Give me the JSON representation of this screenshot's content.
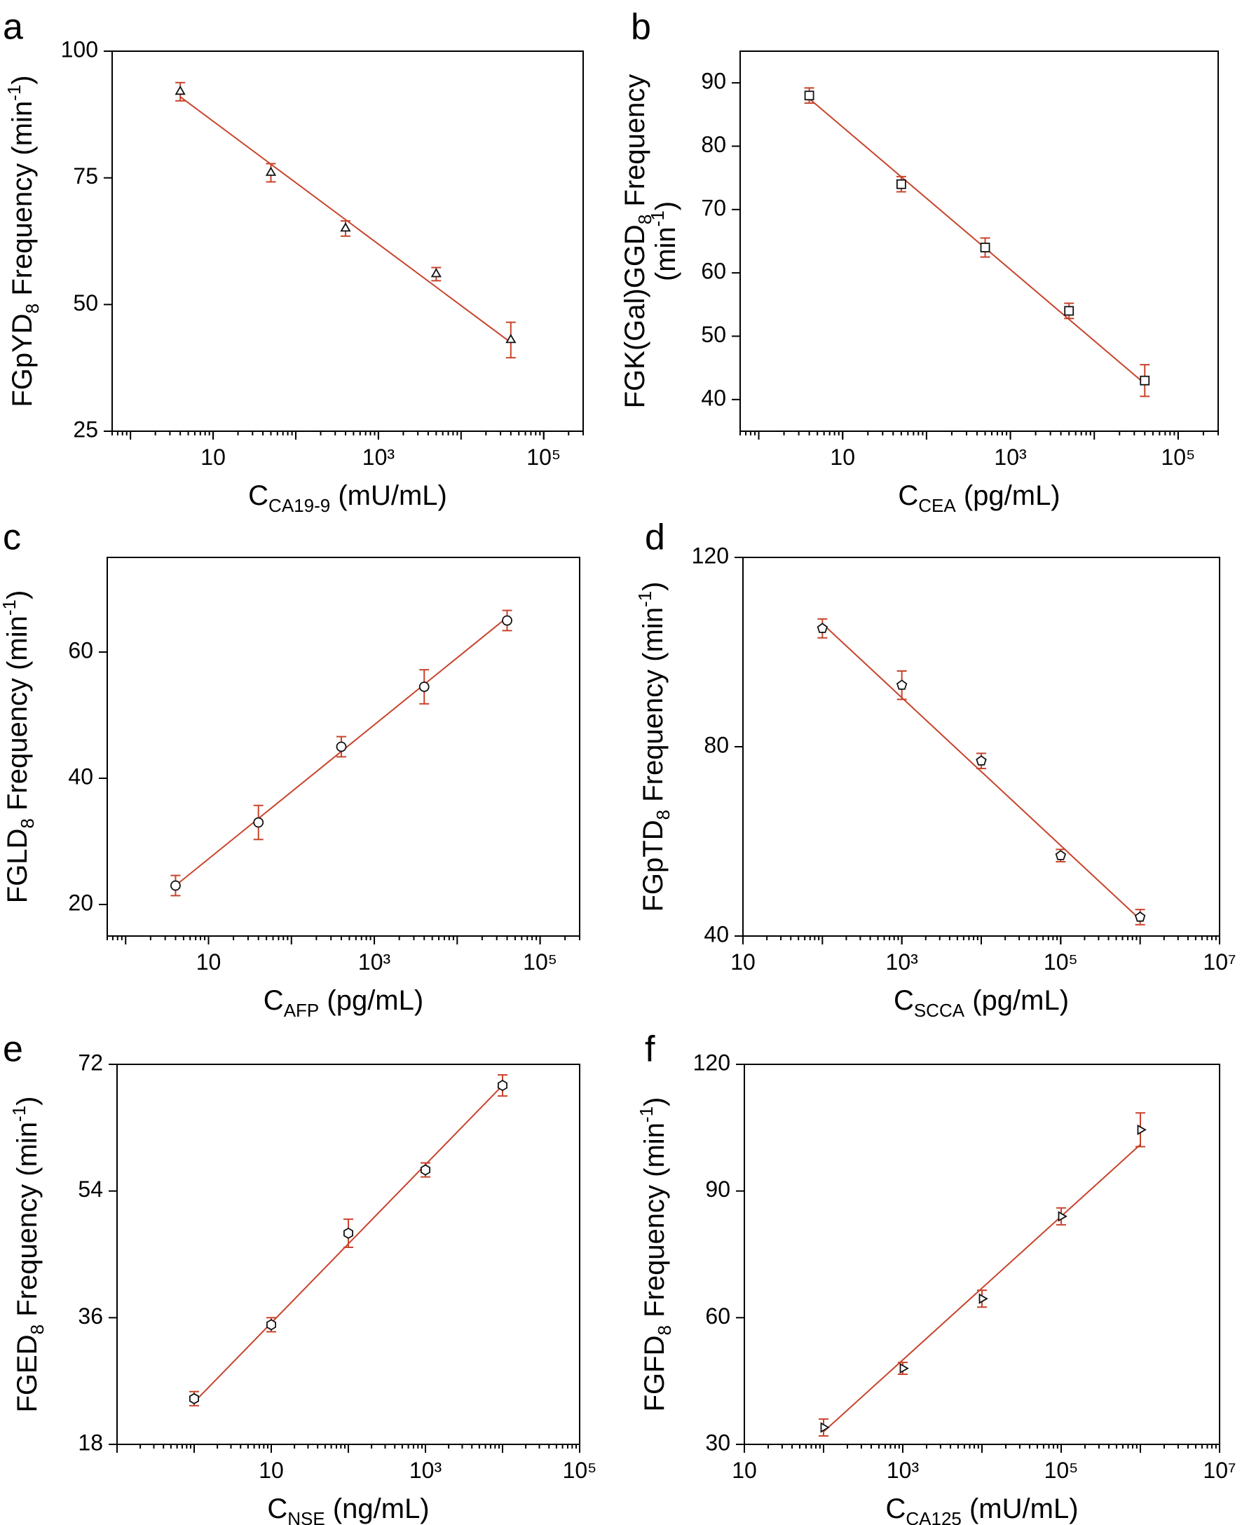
{
  "figure": {
    "panels": [
      {
        "label": "a"
      },
      {
        "label": "b"
      },
      {
        "label": "c"
      },
      {
        "label": "d"
      },
      {
        "label": "e"
      },
      {
        "label": "f"
      }
    ]
  },
  "colors": {
    "fit_line": "#c8432b",
    "error_bar": "#c8432b",
    "marker": "#111111",
    "axis": "#000000"
  },
  "chart_data": [
    {
      "type": "scatter",
      "panel": "a",
      "marker": "triangle-up",
      "xscale": "log",
      "xlim": [
        0.6,
        300000
      ],
      "ylim": [
        25,
        100
      ],
      "xticks": [
        {
          "value": 10,
          "label": "10"
        },
        {
          "value": 1000,
          "label": "10³"
        },
        {
          "value": 100000,
          "label": "10⁵"
        }
      ],
      "yticks": [
        {
          "value": 25,
          "label": "25"
        },
        {
          "value": 50,
          "label": "50"
        },
        {
          "value": 75,
          "label": "75"
        },
        {
          "value": 100,
          "label": "100"
        }
      ],
      "xlabel": {
        "main": "C",
        "sub": "CA19-9",
        "unit": " (mU/mL)"
      },
      "ylabel": {
        "lines": [
          {
            "pre": "FGpYD",
            "sub": "8",
            "mid": " Frequency (min",
            "sup": "-1",
            "post": ")"
          }
        ]
      },
      "points": [
        {
          "x": 4,
          "y": 92,
          "err": 1.8
        },
        {
          "x": 50,
          "y": 76,
          "err": 1.8
        },
        {
          "x": 400,
          "y": 65,
          "err": 1.5
        },
        {
          "x": 5000,
          "y": 56,
          "err": 1.3
        },
        {
          "x": 40000,
          "y": 43,
          "err": 3.5
        }
      ],
      "fit": {
        "x": [
          4,
          40000
        ],
        "y": [
          91,
          42.5
        ]
      }
    },
    {
      "type": "scatter",
      "panel": "b",
      "marker": "square",
      "xscale": "log",
      "xlim": [
        0.6,
        300000
      ],
      "ylim": [
        35,
        95
      ],
      "xticks": [
        {
          "value": 10,
          "label": "10"
        },
        {
          "value": 1000,
          "label": "10³"
        },
        {
          "value": 100000,
          "label": "10⁵"
        }
      ],
      "yticks": [
        {
          "value": 40,
          "label": "40"
        },
        {
          "value": 50,
          "label": "50"
        },
        {
          "value": 60,
          "label": "60"
        },
        {
          "value": 70,
          "label": "70"
        },
        {
          "value": 80,
          "label": "80"
        },
        {
          "value": 90,
          "label": "90"
        }
      ],
      "xlabel": {
        "main": "C",
        "sub": "CEA",
        "unit": " (pg/mL)"
      },
      "ylabel": {
        "lines": [
          {
            "pre": "FGK(Gal)GGD",
            "sub": "8",
            "mid": " Frequency",
            "sup": "",
            "post": ""
          },
          {
            "pre": "(min",
            "sub": "",
            "mid": "",
            "sup": "-1",
            "post": ")"
          }
        ]
      },
      "points": [
        {
          "x": 4,
          "y": 88,
          "err": 1.2
        },
        {
          "x": 50,
          "y": 74,
          "err": 1.2
        },
        {
          "x": 500,
          "y": 64,
          "err": 1.5
        },
        {
          "x": 5000,
          "y": 54,
          "err": 1.2
        },
        {
          "x": 40000,
          "y": 43,
          "err": 2.5
        }
      ],
      "fit": {
        "x": [
          4,
          40000
        ],
        "y": [
          87.5,
          42.5
        ]
      }
    },
    {
      "type": "scatter",
      "panel": "c",
      "marker": "circle",
      "xscale": "log",
      "xlim": [
        0.6,
        300000
      ],
      "ylim": [
        15,
        75
      ],
      "xticks": [
        {
          "value": 10,
          "label": "10"
        },
        {
          "value": 1000,
          "label": "10³"
        },
        {
          "value": 100000,
          "label": "10⁵"
        }
      ],
      "yticks": [
        {
          "value": 20,
          "label": "20"
        },
        {
          "value": 40,
          "label": "40"
        },
        {
          "value": 60,
          "label": "60"
        }
      ],
      "xlabel": {
        "main": "C",
        "sub": "AFP",
        "unit": " (pg/mL)"
      },
      "ylabel": {
        "lines": [
          {
            "pre": "FGLD",
            "sub": "8",
            "mid": " Frequency (min",
            "sup": "-1",
            "post": ")"
          }
        ]
      },
      "points": [
        {
          "x": 4,
          "y": 23,
          "err": 1.6
        },
        {
          "x": 40,
          "y": 33,
          "err": 2.7
        },
        {
          "x": 400,
          "y": 45,
          "err": 1.6
        },
        {
          "x": 4000,
          "y": 54.5,
          "err": 2.7
        },
        {
          "x": 40000,
          "y": 65,
          "err": 1.6
        }
      ],
      "fit": {
        "x": [
          4,
          40000
        ],
        "y": [
          23,
          65.5
        ]
      }
    },
    {
      "type": "scatter",
      "panel": "d",
      "marker": "pentagon",
      "xscale": "log",
      "xlim": [
        10,
        10000000
      ],
      "ylim": [
        40,
        120
      ],
      "xticks": [
        {
          "value": 10,
          "label": "10"
        },
        {
          "value": 1000,
          "label": "10³"
        },
        {
          "value": 100000,
          "label": "10⁵"
        },
        {
          "value": 10000000,
          "label": "10⁷"
        }
      ],
      "yticks": [
        {
          "value": 40,
          "label": "40"
        },
        {
          "value": 80,
          "label": "80"
        },
        {
          "value": 120,
          "label": "120"
        }
      ],
      "xlabel": {
        "main": "C",
        "sub": "SCCA",
        "unit": " (pg/mL)"
      },
      "ylabel": {
        "lines": [
          {
            "pre": "FGpTD",
            "sub": "8",
            "mid": " Frequency (min",
            "sup": "-1",
            "post": ")"
          }
        ]
      },
      "points": [
        {
          "x": 100,
          "y": 105,
          "err": 2
        },
        {
          "x": 1000,
          "y": 93,
          "err": 3
        },
        {
          "x": 10000,
          "y": 77,
          "err": 1.6
        },
        {
          "x": 100000,
          "y": 57,
          "err": 1.3
        },
        {
          "x": 1000000,
          "y": 44,
          "err": 1.6
        }
      ],
      "fit": {
        "x": [
          100,
          1000000
        ],
        "y": [
          106,
          43.5
        ]
      }
    },
    {
      "type": "scatter",
      "panel": "e",
      "marker": "hexagon",
      "xscale": "log",
      "xlim": [
        0.1,
        100000
      ],
      "ylim": [
        18,
        72
      ],
      "xticks": [
        {
          "value": 10,
          "label": "10"
        },
        {
          "value": 1000,
          "label": "10³"
        },
        {
          "value": 100000,
          "label": "10⁵"
        }
      ],
      "yticks": [
        {
          "value": 18,
          "label": "18"
        },
        {
          "value": 36,
          "label": "36"
        },
        {
          "value": 54,
          "label": "54"
        },
        {
          "value": 72,
          "label": "72"
        }
      ],
      "xlabel": {
        "main": "C",
        "sub": "NSE",
        "unit": " (ng/mL)"
      },
      "ylabel": {
        "lines": [
          {
            "pre": "FGED",
            "sub": "8",
            "mid": " Frequency (min",
            "sup": "-1",
            "post": ")"
          }
        ]
      },
      "points": [
        {
          "x": 1,
          "y": 24.5,
          "err": 1
        },
        {
          "x": 10,
          "y": 35,
          "err": 1
        },
        {
          "x": 100,
          "y": 48,
          "err": 2
        },
        {
          "x": 1000,
          "y": 57,
          "err": 1
        },
        {
          "x": 10000,
          "y": 69,
          "err": 1.5
        }
      ],
      "fit": {
        "x": [
          1,
          10000
        ],
        "y": [
          24,
          69
        ]
      }
    },
    {
      "type": "scatter",
      "panel": "f",
      "marker": "triangle-right",
      "xscale": "log",
      "xlim": [
        10,
        10000000
      ],
      "ylim": [
        30,
        120
      ],
      "xticks": [
        {
          "value": 10,
          "label": "10"
        },
        {
          "value": 1000,
          "label": "10³"
        },
        {
          "value": 100000,
          "label": "10⁵"
        },
        {
          "value": 10000000,
          "label": "10⁷"
        }
      ],
      "yticks": [
        {
          "value": 30,
          "label": "30"
        },
        {
          "value": 60,
          "label": "60"
        },
        {
          "value": 90,
          "label": "90"
        },
        {
          "value": 120,
          "label": "120"
        }
      ],
      "xlabel": {
        "main": "C",
        "sub": "CA125",
        "unit": " (mU/mL)"
      },
      "ylabel": {
        "lines": [
          {
            "pre": "FGFD",
            "sub": "8",
            "mid": " Frequency (min",
            "sup": "-1",
            "post": ")"
          }
        ]
      },
      "points": [
        {
          "x": 100,
          "y": 34,
          "err": 2
        },
        {
          "x": 1000,
          "y": 48,
          "err": 1.4
        },
        {
          "x": 10000,
          "y": 64.5,
          "err": 2
        },
        {
          "x": 100000,
          "y": 84,
          "err": 2
        },
        {
          "x": 1000000,
          "y": 104.5,
          "err": 4
        }
      ],
      "fit": {
        "x": [
          100,
          1000000
        ],
        "y": [
          33,
          101
        ]
      }
    }
  ]
}
